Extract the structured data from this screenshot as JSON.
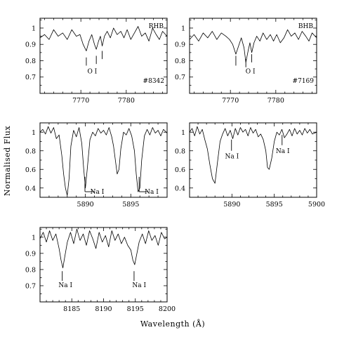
{
  "figure": {
    "ylabel": "Normalised Flux",
    "xlabel": "Wavelength (Å)"
  },
  "chart_data": [
    {
      "type": "line",
      "panel": "top-left",
      "xlim": [
        7761,
        7789
      ],
      "ylim": [
        0.6,
        1.06
      ],
      "xticks": [
        7770,
        7780
      ],
      "yticks": [
        0.7,
        0.8,
        0.9,
        1.0
      ],
      "ytick_labels": [
        "0.7",
        "0.8",
        "0.9",
        "1"
      ],
      "labels": [
        {
          "text": "RHB",
          "position": "top-right"
        },
        {
          "text": "#8342",
          "position": "bottom-right"
        },
        {
          "text": "O I",
          "x": 7772.5,
          "y": 0.735
        }
      ],
      "line_markers": [
        {
          "x": 7771.2,
          "y_top": 0.82,
          "y_bottom": 0.77
        },
        {
          "x": 7773.4,
          "y_top": 0.83,
          "y_bottom": 0.78
        },
        {
          "x": 7774.7,
          "y_top": 0.86,
          "y_bottom": 0.81
        }
      ],
      "x": [
        7761,
        7762,
        7763,
        7764,
        7765,
        7766,
        7767,
        7768,
        7769,
        7769.8,
        7770.5,
        7771.2,
        7771.8,
        7772.4,
        7773.0,
        7773.4,
        7773.9,
        7774.3,
        7774.7,
        7775.2,
        7775.8,
        7776.5,
        7777.2,
        7778.0,
        7778.8,
        7779.5,
        7780.2,
        7781.0,
        7781.8,
        7782.6,
        7783.4,
        7784.2,
        7785.0,
        7785.8,
        7786.6,
        7787.3,
        7788.0,
        7789.0
      ],
      "y": [
        0.94,
        0.96,
        0.93,
        0.99,
        0.95,
        0.97,
        0.93,
        0.99,
        0.95,
        0.96,
        0.9,
        0.86,
        0.92,
        0.96,
        0.9,
        0.87,
        0.92,
        0.95,
        0.89,
        0.95,
        0.98,
        0.94,
        1.0,
        0.96,
        0.98,
        0.94,
        0.99,
        0.93,
        0.97,
        1.01,
        0.95,
        0.97,
        0.92,
        1.0,
        0.96,
        0.93,
        0.98,
        0.95
      ]
    },
    {
      "type": "line",
      "panel": "top-right",
      "xlim": [
        7761,
        7789
      ],
      "ylim": [
        0.6,
        1.06
      ],
      "xticks": [
        7770,
        7780
      ],
      "yticks": [
        0.7,
        0.8,
        0.9,
        1.0
      ],
      "ytick_labels": [
        "0.7",
        "0.8",
        "0.9",
        "1"
      ],
      "labels": [
        {
          "text": "BHB",
          "position": "top-right"
        },
        {
          "text": "#7169",
          "position": "bottom-right"
        },
        {
          "text": "O I",
          "x": 7774.4,
          "y": 0.735
        }
      ],
      "line_markers": [
        {
          "x": 7771.2,
          "y_top": 0.83,
          "y_bottom": 0.77
        },
        {
          "x": 7773.4,
          "y_top": 0.81,
          "y_bottom": 0.76
        },
        {
          "x": 7774.7,
          "y_top": 0.84,
          "y_bottom": 0.79
        }
      ],
      "x": [
        7761,
        7762,
        7763,
        7764,
        7765,
        7766,
        7767,
        7768,
        7769,
        7769.8,
        7770.5,
        7771.2,
        7771.8,
        7772.4,
        7773.0,
        7773.4,
        7773.9,
        7774.3,
        7774.7,
        7775.2,
        7775.8,
        7776.5,
        7777.2,
        7778.0,
        7778.8,
        7779.5,
        7780.2,
        7781.0,
        7781.8,
        7782.6,
        7783.4,
        7784.2,
        7785.0,
        7785.8,
        7786.6,
        7787.3,
        7788.0,
        7789.0
      ],
      "y": [
        0.93,
        0.96,
        0.92,
        0.97,
        0.94,
        0.98,
        0.93,
        0.97,
        0.95,
        0.93,
        0.9,
        0.84,
        0.89,
        0.94,
        0.88,
        0.79,
        0.86,
        0.91,
        0.85,
        0.91,
        0.95,
        0.92,
        0.97,
        0.93,
        0.96,
        0.92,
        0.96,
        0.91,
        0.94,
        0.99,
        0.95,
        0.97,
        0.93,
        0.98,
        0.95,
        0.92,
        0.97,
        0.94
      ]
    },
    {
      "type": "line",
      "panel": "middle-left",
      "xlim": [
        5885,
        5899
      ],
      "ylim": [
        0.3,
        1.1
      ],
      "xticks": [
        5890,
        5895
      ],
      "yticks": [
        0.4,
        0.6,
        0.8,
        1.0
      ],
      "ytick_labels": [
        "0.4",
        "0.6",
        "0.8",
        "1"
      ],
      "labels": [
        {
          "text": "Na I",
          "x": 5891.3,
          "y": 0.36
        },
        {
          "text": "Na I",
          "x": 5897.3,
          "y": 0.36
        }
      ],
      "line_markers": [
        {
          "x": 5889.95,
          "y_top": 0.52,
          "y_bottom": 0.36,
          "tail_to": 5891.0
        },
        {
          "x": 5895.92,
          "y_top": 0.52,
          "y_bottom": 0.36,
          "tail_to": 5896.9
        }
      ],
      "x": [
        5885,
        5885.3,
        5885.6,
        5885.9,
        5886.2,
        5886.5,
        5886.8,
        5887.1,
        5887.4,
        5887.6,
        5887.8,
        5888.0,
        5888.2,
        5888.4,
        5888.7,
        5889.0,
        5889.3,
        5889.6,
        5889.8,
        5890.0,
        5890.2,
        5890.5,
        5890.8,
        5891.1,
        5891.4,
        5891.7,
        5892.0,
        5892.3,
        5892.6,
        5892.9,
        5893.1,
        5893.3,
        5893.5,
        5893.7,
        5893.9,
        5894.2,
        5894.5,
        5894.8,
        5895.1,
        5895.4,
        5895.6,
        5895.8,
        5896.0,
        5896.2,
        5896.5,
        5896.8,
        5897.1,
        5897.4,
        5897.7,
        5898.0,
        5898.3,
        5898.6,
        5899.0
      ],
      "y": [
        1.0,
        1.03,
        0.98,
        1.06,
        0.99,
        1.05,
        0.93,
        0.97,
        0.75,
        0.55,
        0.4,
        0.32,
        0.5,
        0.85,
        1.02,
        0.95,
        1.05,
        0.88,
        0.62,
        0.4,
        0.6,
        0.92,
        1.0,
        0.96,
        1.04,
        0.99,
        1.02,
        0.97,
        1.05,
        0.95,
        0.85,
        0.7,
        0.55,
        0.6,
        0.82,
        1.0,
        0.97,
        1.04,
        0.96,
        0.8,
        0.55,
        0.36,
        0.4,
        0.7,
        0.96,
        1.03,
        0.97,
        1.05,
        0.99,
        1.02,
        0.96,
        1.03,
        0.99
      ]
    },
    {
      "type": "line",
      "panel": "middle-right",
      "xlim": [
        5885,
        5900
      ],
      "ylim": [
        0.3,
        1.1
      ],
      "xticks": [
        5890,
        5895,
        5900
      ],
      "yticks": [
        0.4,
        0.6,
        0.8,
        1.0
      ],
      "ytick_labels": [
        "0.4",
        "0.6",
        "0.8",
        "1"
      ],
      "labels": [
        {
          "text": "Na I",
          "x": 5890.0,
          "y": 0.74
        },
        {
          "text": "Na I",
          "x": 5896.0,
          "y": 0.8
        }
      ],
      "line_markers": [
        {
          "x": 5889.95,
          "y_top": 0.92,
          "y_bottom": 0.8
        },
        {
          "x": 5895.92,
          "y_top": 0.97,
          "y_bottom": 0.86
        }
      ],
      "x": [
        5885,
        5885.3,
        5885.6,
        5885.9,
        5886.2,
        5886.5,
        5886.8,
        5887.1,
        5887.4,
        5887.7,
        5888.0,
        5888.3,
        5888.6,
        5888.9,
        5889.2,
        5889.5,
        5889.8,
        5890.1,
        5890.4,
        5890.7,
        5891.0,
        5891.3,
        5891.6,
        5891.9,
        5892.2,
        5892.5,
        5892.8,
        5893.1,
        5893.4,
        5893.7,
        5894.0,
        5894.2,
        5894.4,
        5894.7,
        5895.0,
        5895.3,
        5895.6,
        5895.9,
        5896.2,
        5896.5,
        5896.8,
        5897.1,
        5897.4,
        5897.7,
        5898.0,
        5898.3,
        5898.6,
        5898.9,
        5899.2,
        5899.5,
        5900.0
      ],
      "y": [
        1.0,
        1.04,
        0.96,
        1.06,
        0.98,
        1.03,
        0.92,
        0.82,
        0.65,
        0.5,
        0.45,
        0.68,
        0.9,
        0.98,
        1.04,
        0.96,
        1.02,
        0.93,
        1.04,
        0.97,
        1.05,
        1.0,
        1.03,
        0.96,
        1.05,
        0.99,
        1.03,
        0.95,
        0.98,
        0.92,
        0.8,
        0.62,
        0.6,
        0.72,
        0.9,
        1.0,
        0.97,
        1.03,
        0.94,
        0.98,
        1.03,
        0.96,
        1.04,
        0.98,
        1.02,
        0.97,
        1.04,
        0.99,
        1.03,
        0.98,
        1.0
      ]
    },
    {
      "type": "line",
      "panel": "bottom-left",
      "xlim": [
        8180,
        8200
      ],
      "ylim": [
        0.6,
        1.06
      ],
      "xticks": [
        8185,
        8190,
        8195,
        8200
      ],
      "yticks": [
        0.7,
        0.8,
        0.9,
        1.0
      ],
      "ytick_labels": [
        "0.7",
        "0.8",
        "0.9",
        "1"
      ],
      "labels": [
        {
          "text": "Na I",
          "x": 8184.0,
          "y": 0.705
        },
        {
          "text": "Na I",
          "x": 8195.6,
          "y": 0.705
        }
      ],
      "line_markers": [
        {
          "x": 8183.5,
          "y_top": 0.79,
          "y_bottom": 0.73
        },
        {
          "x": 8194.8,
          "y_top": 0.79,
          "y_bottom": 0.73
        }
      ],
      "x": [
        8180,
        8180.5,
        8181,
        8181.5,
        8182,
        8182.5,
        8183,
        8183.3,
        8183.6,
        8183.9,
        8184.3,
        8184.8,
        8185.3,
        8185.8,
        8186.3,
        8186.8,
        8187.3,
        8187.8,
        8188.3,
        8188.8,
        8189.3,
        8189.8,
        8190.3,
        8190.8,
        8191.3,
        8191.8,
        8192.3,
        8192.8,
        8193.3,
        8193.8,
        8194.3,
        8194.6,
        8194.9,
        8195.2,
        8195.6,
        8196.1,
        8196.6,
        8197.1,
        8197.6,
        8198.1,
        8198.6,
        8199.1,
        8199.6,
        8200
      ],
      "y": [
        0.99,
        1.03,
        0.97,
        1.04,
        0.98,
        1.02,
        0.93,
        0.86,
        0.81,
        0.88,
        0.97,
        1.03,
        0.96,
        1.05,
        0.98,
        1.02,
        0.95,
        1.04,
        0.99,
        0.93,
        1.03,
        0.97,
        1.01,
        0.94,
        1.04,
        0.98,
        1.02,
        0.96,
        1.0,
        0.95,
        0.92,
        0.86,
        0.83,
        0.89,
        0.97,
        1.02,
        0.96,
        1.04,
        0.98,
        1.01,
        0.95,
        1.03,
        0.99,
        1.0
      ]
    }
  ]
}
